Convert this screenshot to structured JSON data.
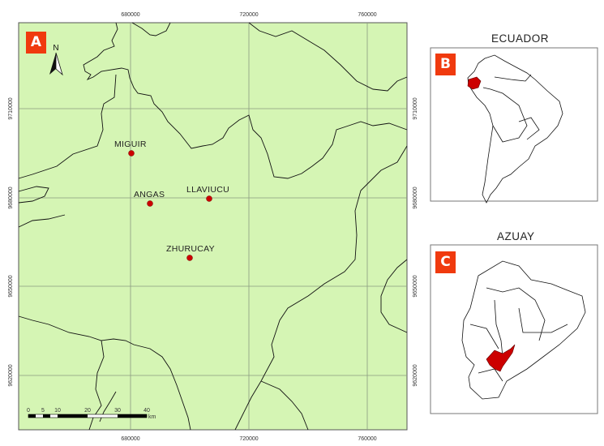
{
  "main_map": {
    "panel_label": "A",
    "north_label": "N",
    "background_color": "#d5f5b4",
    "x_ticks": [
      "680000",
      "720000",
      "760000"
    ],
    "y_ticks": [
      "9710000",
      "9680000",
      "9650000",
      "9620000"
    ],
    "sites": [
      {
        "name": "MIGUIR",
        "color": "#cc0000"
      },
      {
        "name": "ANGAS",
        "color": "#cc0000"
      },
      {
        "name": "LLAVIUCU",
        "color": "#cc0000"
      },
      {
        "name": "ZHURUCAY",
        "color": "#cc0000"
      }
    ],
    "scale_bar": {
      "ticks": [
        "0",
        "5",
        "10",
        "20",
        "30",
        "40"
      ],
      "unit": "km"
    }
  },
  "inset_b": {
    "panel_label": "B",
    "title": "ECUADOR",
    "highlight_color": "#cc0000"
  },
  "inset_c": {
    "panel_label": "C",
    "title": "AZUAY",
    "highlight_color": "#cc0000"
  }
}
